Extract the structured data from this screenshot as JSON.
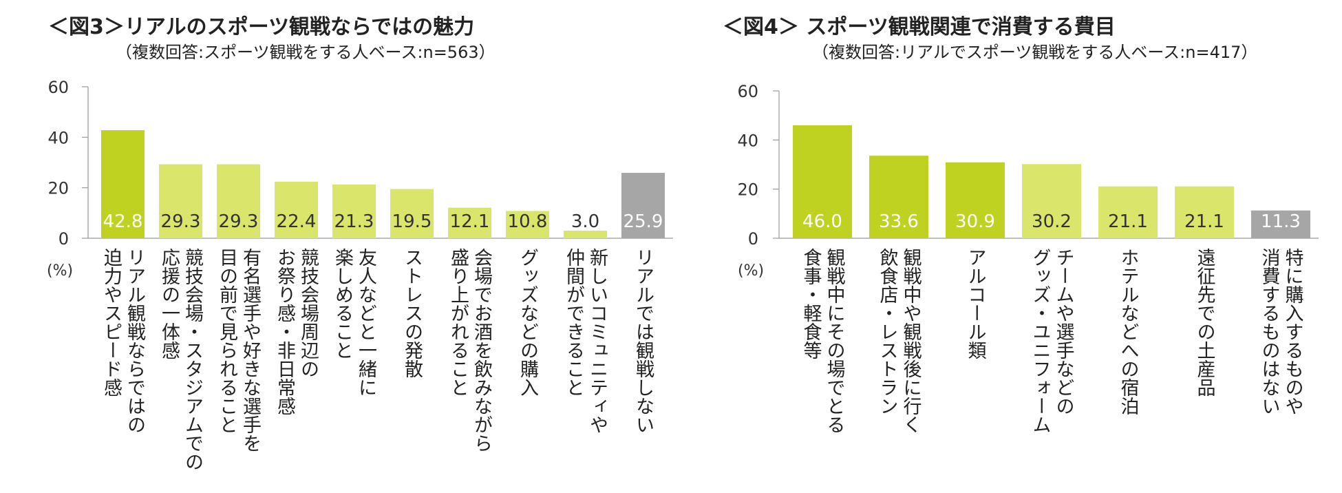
{
  "chart_data": [
    {
      "type": "bar",
      "title": "＜図3＞リアルのスポーツ観戦ならではの魅力",
      "subtitle": "（複数回答:スポーツ観戦をする人ベース:n=563）",
      "unit_label": "(%)",
      "ylim": [
        0,
        60
      ],
      "yticks": [
        "0",
        "20",
        "40",
        "60"
      ],
      "categories": [
        "リアル観戦ならではの迫力やスピード感",
        "競技会場・スタジアムでの応援の一体感",
        "有名選手や好きな選手を目の前で見られること",
        "競技会場周辺のお祭り感・非日常感",
        "友人などと一緒に楽しめること",
        "ストレスの発散",
        "会場でお酒を飲みながら盛り上がれること",
        "グッズなどの購入",
        "新しいコミュニティや仲間ができること",
        "リアルでは観戦しない"
      ],
      "label_lines": [
        [
          "リアル観戦ならではの",
          "迫力やスピード感"
        ],
        [
          "競技会場・スタジアムでの",
          "応援の一体感"
        ],
        [
          "有名選手や好きな選手を",
          "目の前で見られること"
        ],
        [
          "競技会場周辺の",
          "お祭り感・非日常感"
        ],
        [
          "友人などと一緒に",
          "楽しめること"
        ],
        [
          "ストレスの発散"
        ],
        [
          "会場でお酒を飲みながら",
          "盛り上がれること"
        ],
        [
          "グッズなどの購入"
        ],
        [
          "新しいコミュニティや",
          "仲間ができること"
        ],
        [
          "リアルでは観戦しない"
        ]
      ],
      "values": [
        42.8,
        29.3,
        29.3,
        22.4,
        21.3,
        19.5,
        12.1,
        10.8,
        3.0,
        25.9
      ],
      "value_labels": [
        "42.8",
        "29.3",
        "29.3",
        "22.4",
        "21.3",
        "19.5",
        "12.1",
        "10.8",
        "3.0",
        "25.9"
      ],
      "colors": [
        "#bfd221",
        "#d9e56b",
        "#d9e56b",
        "#d9e56b",
        "#d9e56b",
        "#d9e56b",
        "#d9e56b",
        "#d9e56b",
        "#d9e56b",
        "#a6a6a6"
      ],
      "value_colors": [
        "#ffffff",
        "#333333",
        "#333333",
        "#333333",
        "#333333",
        "#333333",
        "#333333",
        "#333333",
        "#333333",
        "#ffffff"
      ]
    },
    {
      "type": "bar",
      "title": "＜図4＞ スポーツ観戦関連で消費する費目",
      "subtitle": "（複数回答:リアルでスポーツ観戦をする人ベース:n=417）",
      "unit_label": "(%)",
      "ylim": [
        0,
        60
      ],
      "yticks": [
        "0",
        "20",
        "40",
        "60"
      ],
      "categories": [
        "観戦中にその場でとる食事・軽食等",
        "観戦中や観戦後に行く飲食店・レストラン",
        "アルコール類",
        "チームや選手などのグッズ・ユニフォーム",
        "ホテルなどへの宿泊",
        "遠征先での土産品",
        "特に購入するものや消費するものはない"
      ],
      "label_lines": [
        [
          "観戦中にその場でとる",
          "食事・軽食等"
        ],
        [
          "観戦中や観戦後に行く",
          "飲食店・レストラン"
        ],
        [
          "アルコール類"
        ],
        [
          "チームや選手などの",
          "グッズ・ユニフォーム"
        ],
        [
          "ホテルなどへの宿泊"
        ],
        [
          "遠征先での土産品"
        ],
        [
          "特に購入するものや",
          "消費するものはない"
        ]
      ],
      "values": [
        46.0,
        33.6,
        30.9,
        30.2,
        21.1,
        21.1,
        11.3
      ],
      "value_labels": [
        "46.0",
        "33.6",
        "30.9",
        "30.2",
        "21.1",
        "21.1",
        "11.3"
      ],
      "colors": [
        "#bfd221",
        "#bfd221",
        "#bfd221",
        "#d9e56b",
        "#d9e56b",
        "#d9e56b",
        "#a6a6a6"
      ],
      "value_colors": [
        "#ffffff",
        "#ffffff",
        "#ffffff",
        "#333333",
        "#333333",
        "#333333",
        "#ffffff"
      ]
    }
  ]
}
